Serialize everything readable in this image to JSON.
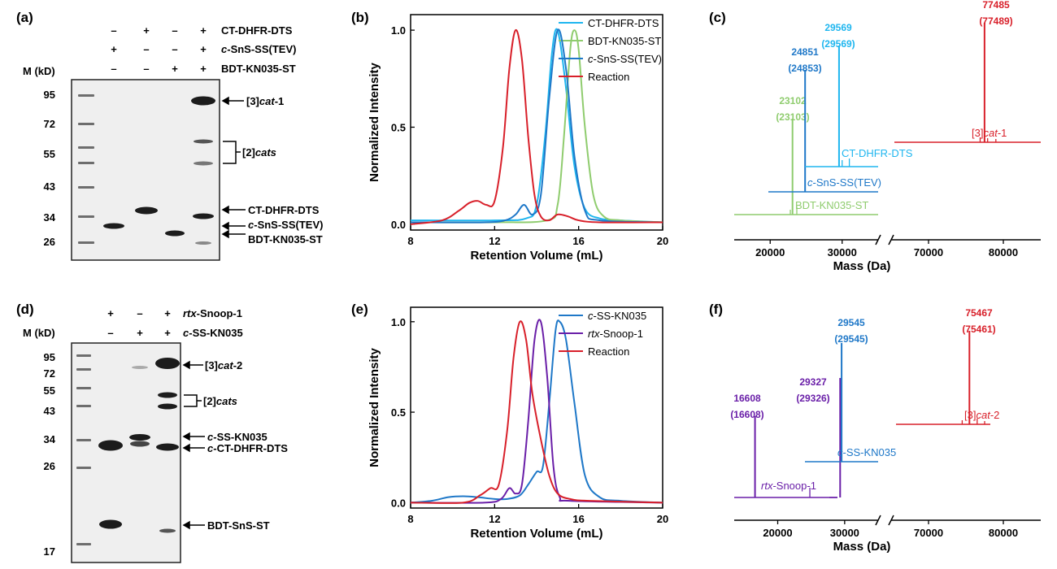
{
  "colors": {
    "ct_dhfr": "#1fb6ef",
    "bdt_kn035": "#8fcc6e",
    "snss": "#1f78c8",
    "reaction": "#d8202a",
    "purple": "#6a1fa8",
    "gel_bg": "#efefef",
    "band": "#1c1c1c"
  },
  "panels": {
    "a": {
      "label": "(a)",
      "mlabel": "M (kD)",
      "rows": [
        {
          "label": "CT-DHFR-DTS",
          "pre": "",
          "it": "",
          "post": "",
          "signs": [
            "–",
            "+",
            "–",
            "+"
          ]
        },
        {
          "label": "",
          "pre": "",
          "it": "c",
          "post": "-SnS-SS(TEV)",
          "signs": [
            "+",
            "–",
            "–",
            "+"
          ]
        },
        {
          "label": "BDT-KN035-ST",
          "pre": "",
          "it": "",
          "post": "",
          "signs": [
            "–",
            "–",
            "+",
            "+"
          ]
        }
      ],
      "markers": [
        95,
        72,
        55,
        43,
        34,
        26
      ],
      "annotations": [
        {
          "pre": "[3]",
          "it": "cat",
          "post": "-1"
        },
        {
          "pre": "[2]",
          "it": "cats",
          "post": ""
        },
        {
          "pre": "CT-DHFR-DTS",
          "it": "",
          "post": ""
        },
        {
          "pre": "",
          "it": "c",
          "post": "-SnS-SS(TEV)"
        },
        {
          "pre": "BDT-KN035-ST",
          "it": "",
          "post": ""
        }
      ]
    },
    "d": {
      "label": "(d)",
      "mlabel": "M (kD)",
      "rows": [
        {
          "pre": "",
          "it": "rtx",
          "post": "-Snoop-1",
          "signs": [
            "+",
            "–",
            "+"
          ]
        },
        {
          "pre": "",
          "it": "c",
          "post": "-SS-KN035",
          "signs": [
            "–",
            "+",
            "+"
          ]
        }
      ],
      "markers": [
        95,
        72,
        55,
        43,
        34,
        26,
        17
      ],
      "annotations": [
        {
          "pre": "[3]",
          "it": "cat",
          "post": "-2"
        },
        {
          "pre": "[2]",
          "it": "cats",
          "post": ""
        },
        {
          "pre": "",
          "it": "c",
          "post": "-SS-KN035"
        },
        {
          "pre": "",
          "it": "c",
          "post": "-CT-DHFR-DTS"
        },
        {
          "pre": "BDT-SnS-ST",
          "it": "",
          "post": ""
        }
      ]
    },
    "b": {
      "label": "(b)"
    },
    "c": {
      "label": "(c)"
    },
    "e": {
      "label": "(e)"
    },
    "f": {
      "label": "(f)"
    }
  },
  "chart_data": [
    {
      "id": "b",
      "type": "line",
      "xlabel": "Retention Volume (mL)",
      "ylabel": "Normalized Intensity",
      "xlim": [
        8,
        20
      ],
      "ylim": [
        -0.03,
        1.08
      ],
      "xticks": [
        8,
        12,
        16,
        20
      ],
      "yticks": [
        0.0,
        0.5,
        1.0
      ],
      "legend_position": "top-right",
      "series": [
        {
          "name": "CT-DHFR-DTS",
          "color": "#1fb6ef",
          "pre": "",
          "it": "",
          "post": "",
          "x": [
            8,
            12,
            13.5,
            14,
            14.4,
            14.7,
            14.9,
            15.1,
            15.4,
            15.8,
            16.3,
            17,
            18,
            20
          ],
          "y": [
            0.02,
            0.02,
            0.03,
            0.1,
            0.45,
            0.85,
            1.0,
            0.95,
            0.7,
            0.3,
            0.08,
            0.03,
            0.02,
            0.01
          ]
        },
        {
          "name": "BDT-KN035-ST",
          "color": "#8fcc6e",
          "pre": "",
          "it": "",
          "post": "",
          "x": [
            8,
            12,
            14.5,
            15,
            15.3,
            15.6,
            15.8,
            16.0,
            16.3,
            16.7,
            17.2,
            18,
            20
          ],
          "y": [
            0.01,
            0.01,
            0.02,
            0.1,
            0.45,
            0.9,
            1.0,
            0.9,
            0.5,
            0.15,
            0.04,
            0.02,
            0.01
          ]
        },
        {
          "name": "",
          "color": "#1f78c8",
          "pre": "",
          "it": "c",
          "post": "-SnS-SS(TEV)",
          "x": [
            8,
            11.5,
            12.5,
            13,
            13.4,
            13.8,
            14.2,
            14.6,
            15.0,
            15.4,
            15.8,
            16.3,
            17,
            20
          ],
          "y": [
            0.01,
            0.01,
            0.02,
            0.05,
            0.1,
            0.05,
            0.15,
            0.65,
            1.0,
            0.8,
            0.35,
            0.07,
            0.02,
            0.01
          ]
        },
        {
          "name": "Reaction",
          "color": "#d8202a",
          "pre": "",
          "it": "",
          "post": "",
          "x": [
            8,
            9.5,
            10.3,
            10.8,
            11.2,
            11.6,
            12.0,
            12.4,
            12.7,
            13.0,
            13.3,
            13.6,
            13.9,
            14.2,
            14.6,
            15.0,
            15.5,
            16.0,
            17,
            20
          ],
          "y": [
            0.0,
            0.02,
            0.07,
            0.11,
            0.12,
            0.1,
            0.12,
            0.4,
            0.8,
            1.0,
            0.85,
            0.45,
            0.15,
            0.04,
            0.02,
            0.05,
            0.04,
            0.02,
            0.01,
            0.01
          ]
        }
      ]
    },
    {
      "id": "c",
      "type": "line",
      "xlabel": "Mass (Da)",
      "xticks": [
        20000,
        30000,
        70000,
        80000
      ],
      "axis_break": [
        35000,
        65000
      ],
      "spectra": [
        {
          "name": "BDT-KN035-ST",
          "pre": "",
          "it": "",
          "post": "",
          "color": "#8fcc6e",
          "peak": 23102,
          "peak_label": "23102",
          "theory_label": "(23103)"
        },
        {
          "name": "",
          "pre": "",
          "it": "c",
          "post": "-SnS-SS(TEV)",
          "color": "#1f78c8",
          "peak": 24851,
          "peak_label": "24851",
          "theory_label": "(24853)"
        },
        {
          "name": "CT-DHFR-DTS",
          "pre": "",
          "it": "",
          "post": "",
          "color": "#1fb6ef",
          "peak": 29569,
          "peak_label": "29569",
          "theory_label": "(29569)"
        },
        {
          "name": "",
          "pre": "[3]",
          "it": "cat",
          "post": "-1",
          "color": "#d8202a",
          "peak": 77485,
          "peak_label": "77485",
          "theory_label": "(77489)"
        }
      ]
    },
    {
      "id": "e",
      "type": "line",
      "xlabel": "Retention Volume (mL)",
      "ylabel": "Normalized Intensity",
      "xlim": [
        8,
        20
      ],
      "ylim": [
        -0.03,
        1.08
      ],
      "xticks": [
        8,
        12,
        16,
        20
      ],
      "yticks": [
        0.0,
        0.5,
        1.0
      ],
      "legend_position": "top-right",
      "series": [
        {
          "name": "",
          "color": "#1f78c8",
          "pre": "",
          "it": "c",
          "post": "-SS-KN035",
          "x": [
            8,
            9,
            9.8,
            10.5,
            11.2,
            12.0,
            12.6,
            13.2,
            13.6,
            14.0,
            14.3,
            14.6,
            14.9,
            15.1,
            15.4,
            15.8,
            16.3,
            17,
            18,
            20
          ],
          "y": [
            0.0,
            0.01,
            0.03,
            0.035,
            0.03,
            0.02,
            0.02,
            0.04,
            0.1,
            0.17,
            0.2,
            0.55,
            0.95,
            1.0,
            0.9,
            0.55,
            0.15,
            0.03,
            0.01,
            0.0
          ]
        },
        {
          "name": "",
          "color": "#6a1fa8",
          "pre": "",
          "it": "rtx",
          "post": "-Snoop-1",
          "x": [
            8,
            11.5,
            12.3,
            12.7,
            13.0,
            13.3,
            13.6,
            13.9,
            14.2,
            14.5,
            14.8,
            15.1,
            15.6,
            20
          ],
          "y": [
            0.0,
            0.0,
            0.02,
            0.08,
            0.05,
            0.1,
            0.45,
            0.9,
            1.0,
            0.7,
            0.2,
            0.03,
            0.01,
            0.0
          ]
        },
        {
          "name": "Reaction",
          "color": "#d8202a",
          "pre": "",
          "it": "",
          "post": "",
          "x": [
            8,
            10.5,
            11.3,
            11.8,
            12.2,
            12.6,
            12.9,
            13.2,
            13.5,
            13.8,
            14.2,
            14.6,
            15.0,
            15.6,
            16.5,
            20
          ],
          "y": [
            0.0,
            0.0,
            0.04,
            0.08,
            0.1,
            0.4,
            0.8,
            1.0,
            0.9,
            0.6,
            0.35,
            0.15,
            0.05,
            0.02,
            0.01,
            0.0
          ]
        }
      ]
    },
    {
      "id": "f",
      "type": "line",
      "xlabel": "Mass (Da)",
      "xticks": [
        20000,
        30000,
        70000,
        80000
      ],
      "axis_break": [
        35000,
        65000
      ],
      "spectra": [
        {
          "name": "",
          "pre": "",
          "it": "rtx",
          "post": "-Snoop-1",
          "color": "#6a1fa8",
          "peak": 16608,
          "peak_label": "16608",
          "theory_label": "(16608)"
        },
        {
          "name": "",
          "pre": "",
          "it": "",
          "post": "",
          "color": "#6a1fa8",
          "peak": 29327,
          "peak_label": "29327",
          "theory_label": "(29326)"
        },
        {
          "name": "",
          "pre": "",
          "it": "c",
          "post": "-SS-KN035",
          "color": "#1f78c8",
          "peak": 29545,
          "peak_label": "29545",
          "theory_label": "(29545)"
        },
        {
          "name": "",
          "pre": "[3]",
          "it": "cat",
          "post": "-2",
          "color": "#d8202a",
          "peak": 75467,
          "peak_label": "75467",
          "theory_label": "(75461)"
        }
      ]
    }
  ]
}
